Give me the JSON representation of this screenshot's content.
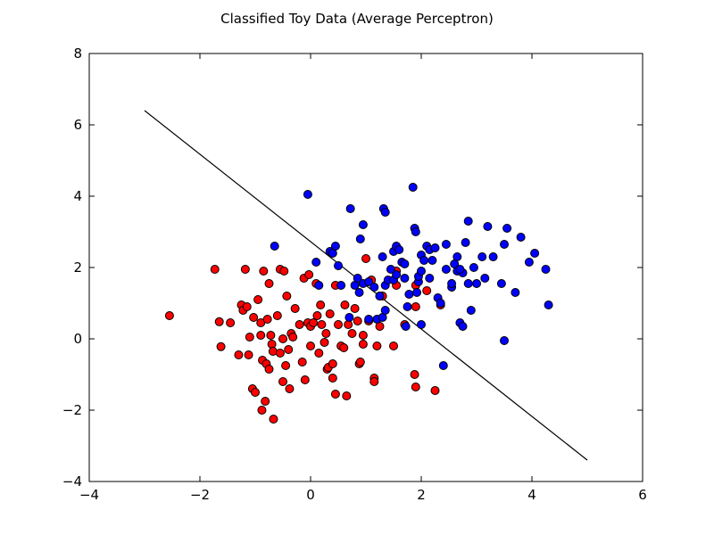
{
  "chart_data": {
    "type": "scatter",
    "title": "Classified Toy Data (Average Perceptron)",
    "xlabel": "",
    "ylabel": "",
    "xlim": [
      -4,
      6
    ],
    "ylim": [
      -4,
      8
    ],
    "x_ticks": [
      -4,
      -2,
      0,
      2,
      4,
      6
    ],
    "y_ticks": [
      -4,
      -2,
      0,
      2,
      4,
      6,
      8
    ],
    "x_tick_labels": [
      "−4",
      "−2",
      "0",
      "2",
      "4",
      "6"
    ],
    "y_tick_labels": [
      "−4",
      "−2",
      "0",
      "2",
      "4",
      "6",
      "8"
    ],
    "grid": false,
    "decision_boundary": {
      "x": [
        -3,
        5
      ],
      "y": [
        6.4,
        -3.4
      ],
      "color": "#000000"
    },
    "series": [
      {
        "color": "#ff0000",
        "points": [
          [
            -2.55,
            0.65
          ],
          [
            -1.73,
            1.95
          ],
          [
            -1.65,
            0.48
          ],
          [
            -1.62,
            -0.22
          ],
          [
            -1.45,
            0.45
          ],
          [
            -1.3,
            -0.45
          ],
          [
            -1.25,
            0.95
          ],
          [
            -1.22,
            0.8
          ],
          [
            -1.18,
            1.95
          ],
          [
            -1.15,
            0.9
          ],
          [
            -1.12,
            -0.45
          ],
          [
            -1.1,
            0.05
          ],
          [
            -1.05,
            -1.4
          ],
          [
            -1.03,
            0.6
          ],
          [
            -1.0,
            -1.5
          ],
          [
            -0.95,
            1.1
          ],
          [
            -0.9,
            0.45
          ],
          [
            -0.9,
            0.1
          ],
          [
            -0.88,
            -2.0
          ],
          [
            -0.87,
            -0.6
          ],
          [
            -0.85,
            1.9
          ],
          [
            -0.82,
            -1.75
          ],
          [
            -0.8,
            -0.7
          ],
          [
            -0.78,
            0.55
          ],
          [
            -0.75,
            -0.85
          ],
          [
            -0.75,
            1.55
          ],
          [
            -0.72,
            0.1
          ],
          [
            -0.7,
            -0.15
          ],
          [
            -0.68,
            -0.35
          ],
          [
            -0.67,
            -2.25
          ],
          [
            -0.6,
            0.65
          ],
          [
            -0.55,
            -0.4
          ],
          [
            -0.55,
            1.95
          ],
          [
            -0.5,
            0.0
          ],
          [
            -0.5,
            -1.2
          ],
          [
            -0.48,
            1.9
          ],
          [
            -0.45,
            -0.75
          ],
          [
            -0.43,
            1.2
          ],
          [
            -0.4,
            -0.3
          ],
          [
            -0.38,
            -1.4
          ],
          [
            -0.35,
            0.15
          ],
          [
            -0.32,
            0.05
          ],
          [
            -0.28,
            0.85
          ],
          [
            -0.2,
            0.4
          ],
          [
            -0.15,
            -0.65
          ],
          [
            -0.12,
            1.7
          ],
          [
            -0.1,
            -1.15
          ],
          [
            -0.05,
            0.45
          ],
          [
            -0.03,
            1.8
          ],
          [
            0.0,
            0.35
          ],
          [
            0.0,
            -0.2
          ],
          [
            0.05,
            0.45
          ],
          [
            0.1,
            1.55
          ],
          [
            0.12,
            0.65
          ],
          [
            0.15,
            -0.4
          ],
          [
            0.18,
            0.95
          ],
          [
            0.2,
            0.4
          ],
          [
            0.25,
            -0.1
          ],
          [
            0.28,
            0.15
          ],
          [
            0.3,
            -0.85
          ],
          [
            0.32,
            -0.8
          ],
          [
            0.35,
            0.7
          ],
          [
            0.4,
            -0.7
          ],
          [
            0.4,
            -1.1
          ],
          [
            0.45,
            1.5
          ],
          [
            0.45,
            -1.55
          ],
          [
            0.5,
            0.4
          ],
          [
            0.55,
            -0.2
          ],
          [
            0.6,
            -0.25
          ],
          [
            0.62,
            0.95
          ],
          [
            0.65,
            -1.6
          ],
          [
            0.68,
            0.4
          ],
          [
            0.75,
            0.15
          ],
          [
            0.8,
            0.85
          ],
          [
            0.85,
            0.5
          ],
          [
            0.88,
            -0.7
          ],
          [
            0.9,
            -0.65
          ],
          [
            0.95,
            0.1
          ],
          [
            0.95,
            -0.15
          ],
          [
            1.0,
            2.25
          ],
          [
            1.05,
            0.5
          ],
          [
            1.1,
            1.65
          ],
          [
            1.15,
            -1.1
          ],
          [
            1.15,
            -1.2
          ],
          [
            1.2,
            -0.2
          ],
          [
            1.25,
            0.35
          ],
          [
            1.25,
            1.2
          ],
          [
            1.3,
            1.2
          ],
          [
            1.5,
            -0.2
          ],
          [
            1.55,
            1.9
          ],
          [
            1.55,
            1.5
          ],
          [
            1.7,
            0.4
          ],
          [
            1.88,
            -1.0
          ],
          [
            1.9,
            -1.35
          ],
          [
            1.9,
            1.5
          ],
          [
            1.9,
            0.9
          ],
          [
            2.25,
            -1.45
          ],
          [
            2.35,
            0.95
          ],
          [
            2.1,
            1.35
          ]
        ]
      },
      {
        "color": "#0000ff",
        "points": [
          [
            -0.65,
            2.6
          ],
          [
            -0.05,
            4.05
          ],
          [
            0.1,
            2.15
          ],
          [
            0.15,
            1.5
          ],
          [
            0.35,
            2.45
          ],
          [
            0.4,
            2.4
          ],
          [
            0.45,
            2.6
          ],
          [
            0.5,
            2.05
          ],
          [
            0.55,
            1.5
          ],
          [
            0.7,
            0.6
          ],
          [
            0.72,
            3.65
          ],
          [
            0.8,
            1.5
          ],
          [
            0.85,
            1.7
          ],
          [
            0.88,
            1.3
          ],
          [
            0.9,
            2.8
          ],
          [
            0.95,
            1.55
          ],
          [
            0.95,
            3.2
          ],
          [
            1.05,
            1.6
          ],
          [
            1.05,
            0.55
          ],
          [
            1.15,
            1.45
          ],
          [
            1.2,
            0.55
          ],
          [
            1.25,
            1.2
          ],
          [
            1.3,
            0.6
          ],
          [
            1.3,
            2.3
          ],
          [
            1.32,
            3.65
          ],
          [
            1.35,
            0.8
          ],
          [
            1.35,
            3.55
          ],
          [
            1.35,
            1.5
          ],
          [
            1.4,
            1.65
          ],
          [
            1.45,
            1.95
          ],
          [
            1.5,
            1.65
          ],
          [
            1.5,
            2.45
          ],
          [
            1.55,
            2.6
          ],
          [
            1.55,
            1.8
          ],
          [
            1.6,
            2.5
          ],
          [
            1.65,
            2.15
          ],
          [
            1.7,
            2.1
          ],
          [
            1.72,
            0.35
          ],
          [
            1.75,
            0.9
          ],
          [
            1.78,
            1.25
          ],
          [
            1.85,
            4.25
          ],
          [
            1.88,
            3.1
          ],
          [
            1.9,
            3.0
          ],
          [
            1.92,
            1.3
          ],
          [
            1.95,
            1.6
          ],
          [
            1.95,
            1.75
          ],
          [
            2.0,
            2.35
          ],
          [
            2.0,
            1.9
          ],
          [
            2.05,
            2.2
          ],
          [
            2.1,
            2.6
          ],
          [
            2.15,
            2.5
          ],
          [
            2.15,
            1.7
          ],
          [
            2.2,
            2.2
          ],
          [
            2.25,
            2.55
          ],
          [
            2.3,
            1.15
          ],
          [
            2.35,
            1.0
          ],
          [
            2.45,
            1.95
          ],
          [
            2.45,
            2.65
          ],
          [
            2.55,
            1.45
          ],
          [
            2.6,
            2.1
          ],
          [
            2.65,
            1.9
          ],
          [
            2.7,
            0.45
          ],
          [
            2.75,
            0.35
          ],
          [
            2.75,
            1.85
          ],
          [
            2.8,
            2.7
          ],
          [
            2.85,
            3.3
          ],
          [
            2.85,
            1.55
          ],
          [
            2.9,
            0.8
          ],
          [
            2.95,
            2.0
          ],
          [
            3.0,
            1.55
          ],
          [
            3.1,
            2.3
          ],
          [
            3.15,
            1.7
          ],
          [
            3.2,
            3.15
          ],
          [
            3.3,
            2.3
          ],
          [
            3.45,
            1.55
          ],
          [
            3.5,
            2.65
          ],
          [
            3.55,
            3.1
          ],
          [
            3.7,
            1.3
          ],
          [
            3.8,
            2.85
          ],
          [
            3.95,
            2.15
          ],
          [
            3.5,
            -0.05
          ],
          [
            4.05,
            2.4
          ],
          [
            4.25,
            1.95
          ],
          [
            4.3,
            0.95
          ],
          [
            2.4,
            -0.75
          ],
          [
            2.55,
            1.55
          ],
          [
            2.65,
            2.3
          ],
          [
            2.7,
            1.95
          ],
          [
            1.7,
            1.7
          ],
          [
            2.0,
            0.4
          ]
        ]
      }
    ]
  }
}
